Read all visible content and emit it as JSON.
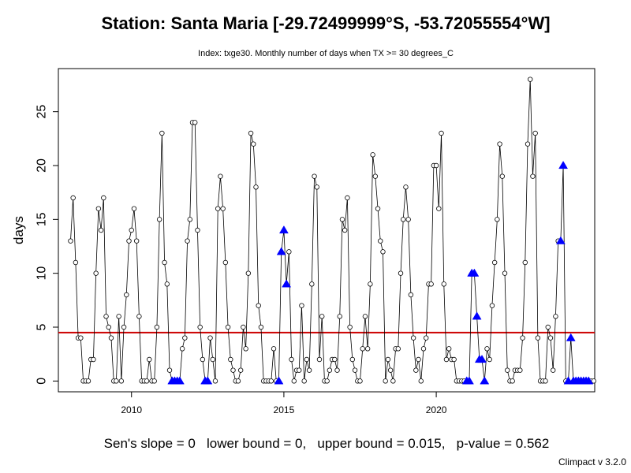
{
  "chart_data": {
    "type": "line",
    "title": "Station: Santa Maria [-29.72499999°S, -53.72055554°W]",
    "subtitle": "Index: txge30. Monthly number of days when TX >= 30 degrees_C",
    "xlabel": "",
    "ylabel": "days",
    "xlim": [
      2007.6,
      2025.2
    ],
    "ylim": [
      -1,
      29
    ],
    "x_ticks": [
      2010,
      2015,
      2020
    ],
    "y_ticks": [
      0,
      5,
      10,
      15,
      20,
      25
    ],
    "grid": false,
    "start_year": 2008,
    "start_month": 1,
    "values": [
      13,
      17,
      11,
      4,
      4,
      0,
      0,
      0,
      2,
      2,
      10,
      16,
      14,
      17,
      6,
      5,
      4,
      0,
      0,
      6,
      0,
      5,
      8,
      13,
      14,
      16,
      13,
      6,
      0,
      0,
      0,
      2,
      0,
      0,
      5,
      15,
      23,
      11,
      9,
      1,
      0,
      0,
      0,
      0,
      3,
      4,
      13,
      15,
      24,
      24,
      14,
      5,
      2,
      0,
      0,
      4,
      2,
      0,
      16,
      19,
      16,
      11,
      5,
      2,
      1,
      0,
      0,
      1,
      5,
      3,
      10,
      23,
      22,
      18,
      7,
      5,
      0,
      0,
      0,
      0,
      3,
      0,
      0,
      12,
      14,
      9,
      12,
      2,
      0,
      1,
      1,
      7,
      0,
      2,
      1,
      9,
      19,
      18,
      2,
      6,
      0,
      0,
      1,
      2,
      2,
      1,
      6,
      15,
      14,
      17,
      5,
      2,
      1,
      0,
      0,
      3,
      6,
      3,
      9,
      21,
      19,
      16,
      13,
      12,
      0,
      2,
      1,
      0,
      3,
      3,
      10,
      15,
      18,
      15,
      8,
      4,
      1,
      2,
      0,
      3,
      4,
      9,
      9,
      20,
      20,
      16,
      23,
      9,
      2,
      3,
      2,
      2,
      0,
      0,
      0,
      0,
      0,
      0,
      10,
      10,
      6,
      2,
      2,
      0,
      3,
      2,
      7,
      11,
      15,
      22,
      19,
      10,
      1,
      0,
      0,
      1,
      1,
      1,
      4,
      11,
      22,
      28,
      19,
      23,
      4,
      0,
      0,
      0,
      5,
      4,
      1,
      6,
      13,
      13,
      20,
      0,
      0,
      4,
      0,
      0,
      0,
      0,
      0,
      0,
      0,
      0,
      0
    ],
    "missing_value_marker": {
      "value": 0,
      "color": "#0000ff",
      "shape": "triangle"
    },
    "missing_indices": [
      40,
      41,
      42,
      43,
      53,
      54,
      82,
      83,
      84,
      85,
      156,
      157,
      158,
      159,
      160,
      161,
      162,
      163,
      193,
      194,
      196,
      197,
      198,
      199,
      200,
      201,
      202,
      203,
      204
    ],
    "reference_line": {
      "value": 4.5,
      "color": "#cc0000"
    },
    "series_color": "#000000"
  },
  "footer": {
    "stats": "Sen's slope = 0   lower bound = 0,   upper bound = 0.015,   p-value = 0.562",
    "credit": "Climpact v 3.2.0"
  }
}
